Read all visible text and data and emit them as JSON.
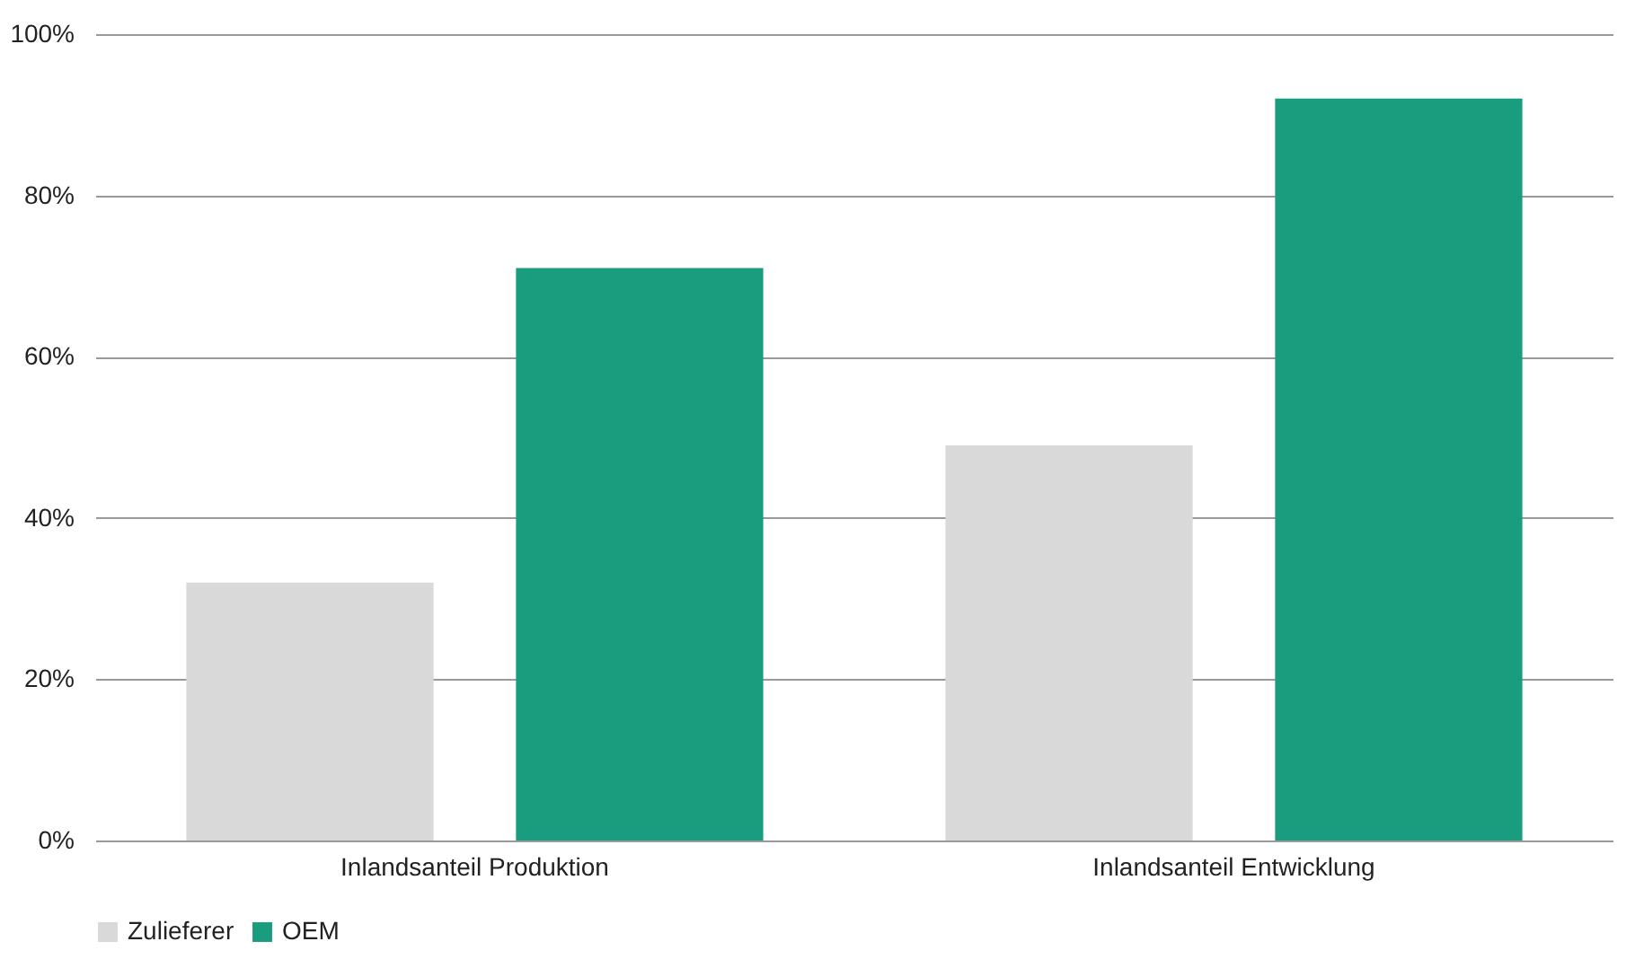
{
  "chart_data": {
    "type": "bar",
    "categories": [
      "Inlandsanteil Produktion",
      "Inlandsanteil Entwicklung"
    ],
    "series": [
      {
        "name": "Zulieferer",
        "color": "#d9d9d9",
        "values": [
          32,
          49
        ]
      },
      {
        "name": "OEM",
        "color": "#1a9c7e",
        "values": [
          71,
          92
        ]
      }
    ],
    "ylim": [
      0,
      100
    ],
    "yticks": [
      {
        "value": 0,
        "label": "0%"
      },
      {
        "value": 20,
        "label": "20%"
      },
      {
        "value": 40,
        "label": "40%"
      },
      {
        "value": 60,
        "label": "60%"
      },
      {
        "value": 80,
        "label": "80%"
      },
      {
        "value": 100,
        "label": "100%"
      }
    ],
    "grid": "y",
    "legend": "bottom"
  }
}
